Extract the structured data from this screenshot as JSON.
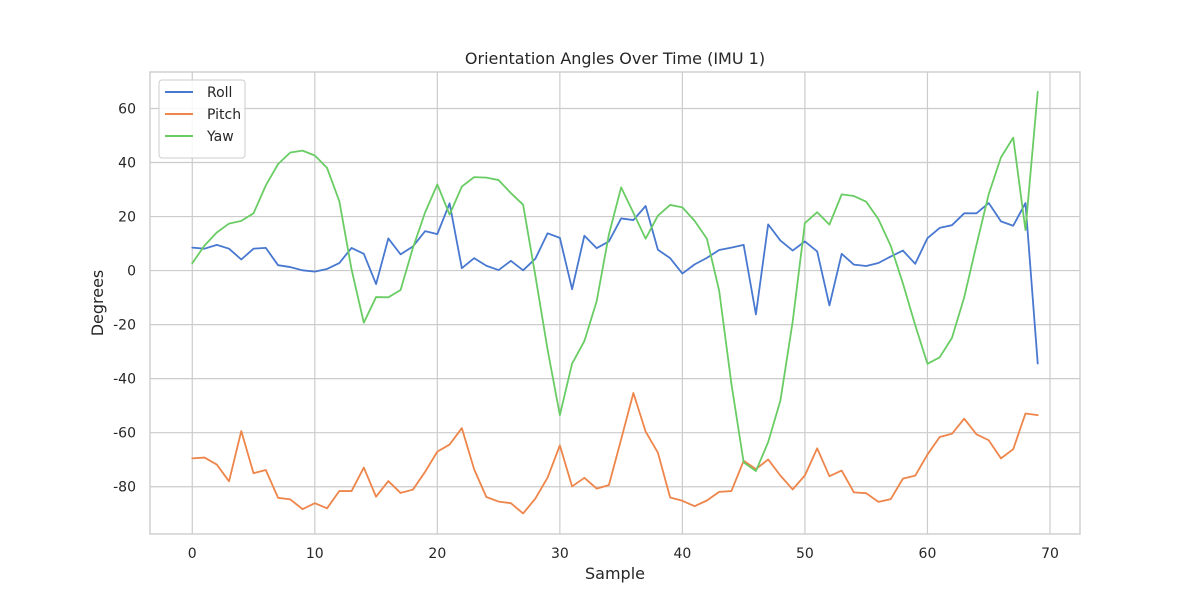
{
  "chart_data": {
    "type": "line",
    "title": "Orientation Angles Over Time (IMU 1)",
    "xlabel": "Sample",
    "ylabel": "Degrees",
    "xlim": [
      -3.45,
      72.45
    ],
    "ylim": [
      -97.5,
      73.5
    ],
    "xticks": [
      0,
      10,
      20,
      30,
      40,
      50,
      60,
      70
    ],
    "yticks": [
      -80,
      -60,
      -40,
      -20,
      0,
      20,
      40,
      60
    ],
    "grid": true,
    "legend_position": "top-left",
    "series": [
      {
        "name": "Roll",
        "color": "#4878d0",
        "values": [
          8.5,
          8.1,
          9.5,
          8.1,
          4.1,
          8.1,
          8.4,
          2.0,
          1.3,
          0.1,
          -0.4,
          0.6,
          2.8,
          8.4,
          6.2,
          -5.0,
          11.9,
          6.0,
          8.9,
          14.6,
          13.5,
          24.9,
          0.9,
          4.6,
          1.8,
          0.2,
          3.6,
          0.1,
          4.4,
          13.8,
          12.1,
          -6.9,
          12.9,
          8.3,
          10.8,
          19.3,
          18.7,
          23.9,
          7.7,
          4.6,
          -1.1,
          2.3,
          4.7,
          7.6,
          8.5,
          9.5,
          -16.2,
          17.1,
          11.1,
          7.4,
          10.8,
          7.1,
          -12.9,
          6.2,
          2.2,
          1.7,
          2.8,
          5.2,
          7.4,
          2.5,
          12.0,
          15.8,
          16.8,
          21.2,
          21.2,
          25.0,
          18.2,
          16.6,
          25.0,
          -34.4
        ]
      },
      {
        "name": "Pitch",
        "color": "#ee854a",
        "values": [
          -69.5,
          -69.2,
          -71.8,
          -78.0,
          -59.4,
          -75.0,
          -73.8,
          -84.1,
          -84.7,
          -88.3,
          -86.1,
          -88.0,
          -81.6,
          -81.6,
          -72.9,
          -83.7,
          -77.9,
          -82.3,
          -81.1,
          -74.5,
          -67.0,
          -64.4,
          -58.3,
          -73.5,
          -83.8,
          -85.5,
          -86.1,
          -89.9,
          -84.4,
          -76.6,
          -64.7,
          -79.9,
          -76.7,
          -80.7,
          -79.4,
          -62.5,
          -45.3,
          -59.6,
          -67.4,
          -84.0,
          -85.2,
          -87.2,
          -85.1,
          -81.9,
          -81.6,
          -70.4,
          -73.5,
          -69.9,
          -75.9,
          -81.0,
          -75.8,
          -65.8,
          -76.1,
          -74.0,
          -82.1,
          -82.4,
          -85.6,
          -84.6,
          -77.0,
          -75.9,
          -68.1,
          -61.6,
          -60.4,
          -54.8,
          -60.6,
          -62.8,
          -69.5,
          -66.1,
          -52.9,
          -53.5
        ]
      },
      {
        "name": "Yaw",
        "color": "#6acc64",
        "values": [
          2.7,
          9.3,
          14.1,
          17.4,
          18.4,
          21.2,
          31.5,
          39.4,
          43.7,
          44.4,
          42.6,
          38.0,
          25.7,
          0.4,
          -19.3,
          -9.8,
          -9.9,
          -7.2,
          8.3,
          21.5,
          31.9,
          20.7,
          31.1,
          34.6,
          34.4,
          33.5,
          28.7,
          24.4,
          -1.9,
          -29.3,
          -53.5,
          -34.4,
          -26.1,
          -11.4,
          13.3,
          30.8,
          21.4,
          11.8,
          20.3,
          24.3,
          23.4,
          18.4,
          11.8,
          -7.4,
          -41.9,
          -71.0,
          -74.2,
          -63.5,
          -48.1,
          -18.9,
          17.6,
          21.6,
          17.0,
          28.2,
          27.6,
          25.5,
          19.0,
          9.2,
          -4.8,
          -20.2,
          -34.5,
          -32.1,
          -24.9,
          -9.9,
          9.5,
          28.3,
          41.9,
          49.2,
          15.0,
          66.2
        ]
      }
    ]
  }
}
